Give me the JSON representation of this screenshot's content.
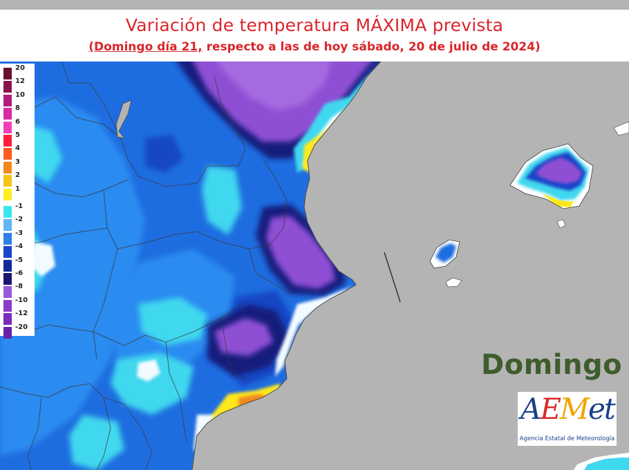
{
  "header": {
    "title": "Variación de temperatura MÁXIMA prevista",
    "subtitle_underlined": "(Domingo día 21,",
    "subtitle_rest": " respecto a las de hoy sábado, 20 de julio de 2024)"
  },
  "day_label": "Domingo",
  "logo": {
    "word_a": "A",
    "word_e": "E",
    "word_m": "M",
    "word_rest": "et",
    "caption": "Agencia Estatal de Meteorología"
  },
  "legend": {
    "items": [
      {
        "label": "20",
        "color": "#6a0e2e"
      },
      {
        "label": "12",
        "color": "#8c124f"
      },
      {
        "label": "10",
        "color": "#b01c7c"
      },
      {
        "label": "8",
        "color": "#d92aa5"
      },
      {
        "label": "6",
        "color": "#f23fb8"
      },
      {
        "label": "5",
        "color": "#ff1f3c"
      },
      {
        "label": "4",
        "color": "#ff5a1f"
      },
      {
        "label": "3",
        "color": "#f08a1a"
      },
      {
        "label": "2",
        "color": "#f5c418"
      },
      {
        "label": "1",
        "color": "#ffee22"
      },
      {
        "label": "-1",
        "color": "#39e6ea"
      },
      {
        "label": "-2",
        "color": "#5fb6f5"
      },
      {
        "label": "-3",
        "color": "#2f7fe8"
      },
      {
        "label": "-4",
        "color": "#1d45c8"
      },
      {
        "label": "-5",
        "color": "#142a9a"
      },
      {
        "label": "-6",
        "color": "#1a1670"
      },
      {
        "label": "-8",
        "color": "#9a59d6"
      },
      {
        "label": "-10",
        "color": "#8a3ccc"
      },
      {
        "label": "-12",
        "color": "#7a2cbd"
      },
      {
        "label": "-20",
        "color": "#6a20a8"
      }
    ]
  },
  "colors": {
    "sea": "#b4b4b4",
    "land_base": "#1e6de0",
    "title_red": "#d9262b",
    "day_green": "#3f5d2c"
  }
}
